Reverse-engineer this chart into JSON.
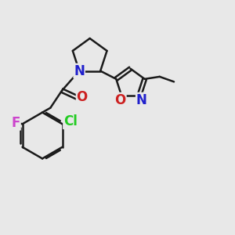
{
  "bg_color": "#e8e8e8",
  "bond_color": "#1a1a1a",
  "bond_width": 1.8,
  "atom_colors": {
    "N": "#2020cc",
    "O": "#cc2020",
    "Cl": "#22cc22",
    "F": "#cc44cc"
  },
  "font_size": 12
}
